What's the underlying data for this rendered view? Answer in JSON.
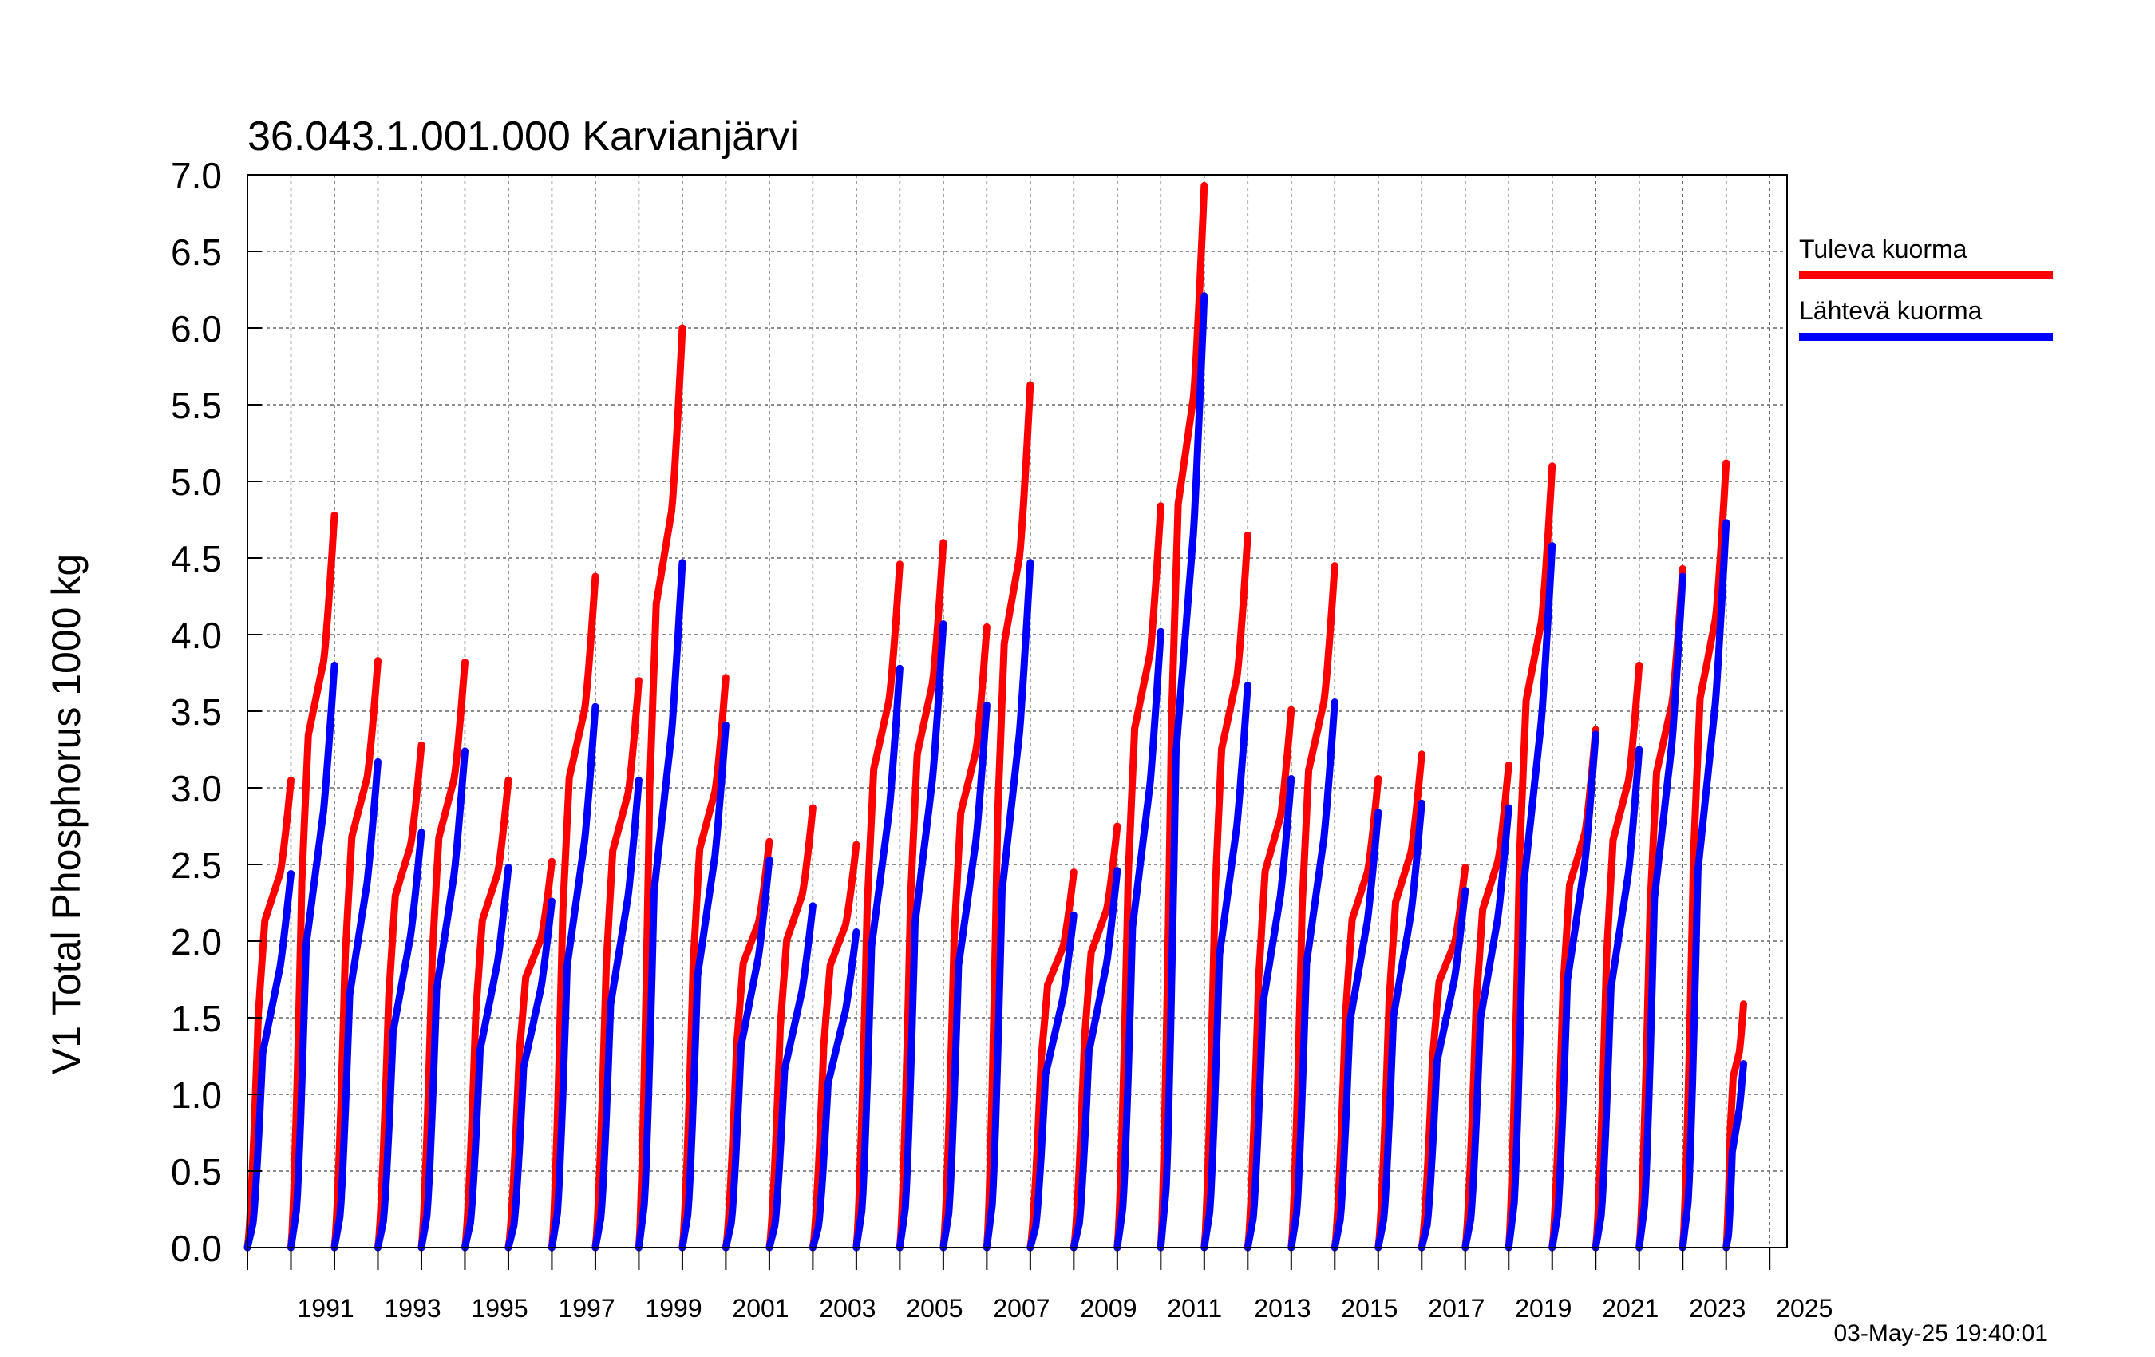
{
  "chart_data": {
    "type": "line",
    "title": "36.043.1.001.000 Karvianjärvi",
    "xlabel": "",
    "ylabel": "V1 Total Phosphorus 1000 kg",
    "ylim": [
      0,
      7
    ],
    "yticks": [
      "0.0",
      "0.5",
      "1.0",
      "1.5",
      "2.0",
      "2.5",
      "3.0",
      "3.5",
      "4.0",
      "4.5",
      "5.0",
      "5.5",
      "6.0",
      "6.5",
      "7.0"
    ],
    "xlim": [
      1990,
      2025.4
    ],
    "xtick_labels": [
      "1991",
      "1993",
      "1995",
      "1997",
      "1999",
      "2001",
      "2003",
      "2005",
      "2007",
      "2009",
      "2011",
      "2013",
      "2015",
      "2017",
      "2019",
      "2021",
      "2023",
      "2025"
    ],
    "grid": true,
    "legend_position": "right",
    "timestamp": "03-May-25 19:40:01",
    "series": [
      {
        "name": "Tuleva kuorma",
        "color": "#ff0000",
        "description": "cumulative annual incoming load, resets each year",
        "annual_max": [
          3.05,
          4.78,
          3.83,
          3.28,
          3.82,
          3.05,
          2.52,
          4.38,
          3.7,
          6.0,
          3.72,
          2.65,
          2.87,
          2.63,
          4.46,
          4.6,
          4.05,
          5.63,
          2.45,
          2.75,
          4.84,
          6.93,
          4.65,
          3.51,
          4.45,
          3.06,
          3.22,
          2.48,
          3.15,
          5.1,
          3.38,
          3.8,
          4.43,
          5.12,
          1.59
        ]
      },
      {
        "name": "Lähtevä kuorma",
        "color": "#0000ff",
        "description": "cumulative annual outgoing load, resets each year",
        "annual_max": [
          2.44,
          3.8,
          3.17,
          2.71,
          3.24,
          2.48,
          2.26,
          3.53,
          3.05,
          4.47,
          3.41,
          2.53,
          2.23,
          2.06,
          3.78,
          4.07,
          3.54,
          4.47,
          2.17,
          2.46,
          4.02,
          6.21,
          3.67,
          3.06,
          3.56,
          2.84,
          2.9,
          2.33,
          2.87,
          4.58,
          3.35,
          3.25,
          4.38,
          4.73,
          1.2
        ]
      }
    ]
  }
}
